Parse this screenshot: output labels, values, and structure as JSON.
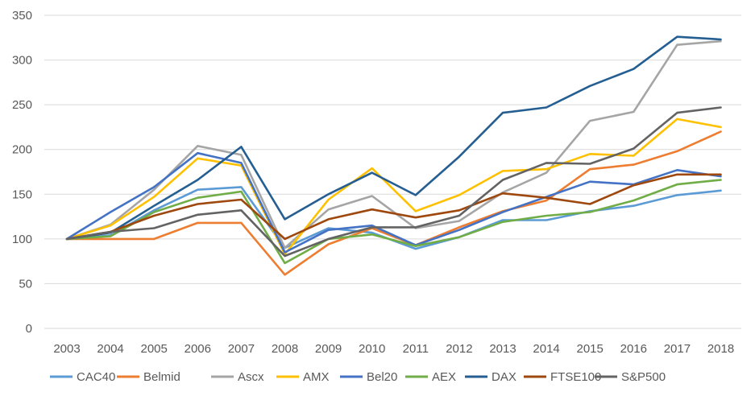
{
  "chart_data": {
    "type": "line",
    "title": "",
    "xlabel": "",
    "ylabel": "",
    "ylim": [
      0,
      350
    ],
    "yticks": [
      "0",
      "50",
      "100",
      "150",
      "200",
      "250",
      "300",
      "350"
    ],
    "grid": true,
    "legend_position": "bottom",
    "categories": [
      "2003",
      "2004",
      "2005",
      "2006",
      "2007",
      "2008",
      "2009",
      "2010",
      "2011",
      "2012",
      "2013",
      "2014",
      "2015",
      "2016",
      "2017",
      "2018"
    ],
    "series": [
      {
        "name": "CAC40",
        "color": "#5B9BD5",
        "values": [
          100,
          104,
          132,
          155,
          158,
          90,
          112,
          107,
          89,
          102,
          121,
          121,
          131,
          137,
          149,
          154
        ]
      },
      {
        "name": "Belmid",
        "color": "#ED7D31",
        "values": [
          100,
          100,
          100,
          118,
          118,
          60,
          94,
          112,
          93,
          113,
          131,
          143,
          178,
          183,
          198,
          220
        ]
      },
      {
        "name": "Ascx",
        "color": "#A5A5A5",
        "values": [
          100,
          116,
          155,
          204,
          194,
          90,
          133,
          148,
          112,
          120,
          152,
          174,
          232,
          242,
          317,
          321
        ]
      },
      {
        "name": "AMX",
        "color": "#FFC000",
        "values": [
          100,
          115,
          147,
          190,
          182,
          83,
          144,
          179,
          131,
          149,
          176,
          178,
          195,
          193,
          234,
          225
        ]
      },
      {
        "name": "Bel20",
        "color": "#4472C4",
        "values": [
          100,
          130,
          158,
          196,
          185,
          85,
          110,
          115,
          93,
          110,
          130,
          147,
          164,
          161,
          177,
          170
        ]
      },
      {
        "name": "AEX",
        "color": "#70AD47",
        "values": [
          100,
          103,
          130,
          146,
          153,
          73,
          100,
          105,
          92,
          102,
          119,
          126,
          130,
          143,
          161,
          166
        ]
      },
      {
        "name": "DAX",
        "color": "#255E91",
        "values": [
          100,
          107,
          137,
          166,
          203,
          122,
          150,
          174,
          149,
          192,
          241,
          247,
          271,
          290,
          326,
          323
        ]
      },
      {
        "name": "FTSE100",
        "color": "#9E480E",
        "values": [
          100,
          108,
          126,
          139,
          144,
          100,
          122,
          133,
          124,
          132,
          151,
          146,
          139,
          160,
          172,
          172
        ]
      },
      {
        "name": "S&P500",
        "color": "#636363",
        "values": [
          100,
          108,
          112,
          127,
          132,
          81,
          100,
          113,
          113,
          126,
          166,
          185,
          184,
          201,
          241,
          247
        ]
      }
    ]
  }
}
